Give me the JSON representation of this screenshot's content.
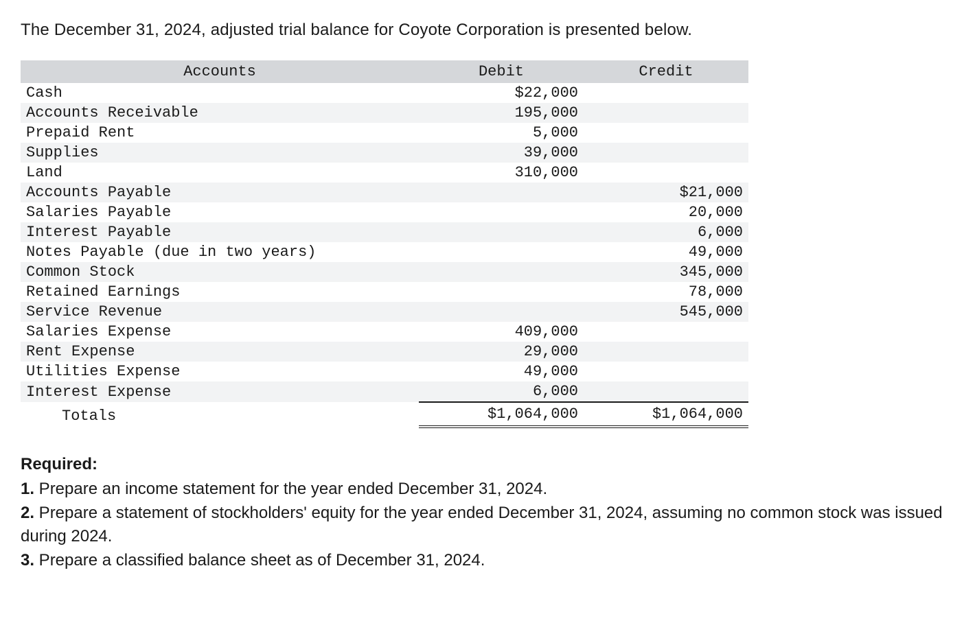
{
  "intro_text": "The December 31, 2024, adjusted trial balance for Coyote Corporation is presented below.",
  "table": {
    "headers": {
      "accounts": "Accounts",
      "debit": "Debit",
      "credit": "Credit"
    },
    "rows": [
      {
        "account": "Cash",
        "debit": "$22,000",
        "credit": "",
        "alt": false
      },
      {
        "account": "Accounts Receivable",
        "debit": "195,000",
        "credit": "",
        "alt": true
      },
      {
        "account": "Prepaid Rent",
        "debit": "5,000",
        "credit": "",
        "alt": false
      },
      {
        "account": "Supplies",
        "debit": "39,000",
        "credit": "",
        "alt": true
      },
      {
        "account": "Land",
        "debit": "310,000",
        "credit": "",
        "alt": false
      },
      {
        "account": "Accounts Payable",
        "debit": "",
        "credit": "$21,000",
        "alt": true
      },
      {
        "account": "Salaries Payable",
        "debit": "",
        "credit": "20,000",
        "alt": false
      },
      {
        "account": "Interest Payable",
        "debit": "",
        "credit": "6,000",
        "alt": true
      },
      {
        "account": "Notes Payable (due in two years)",
        "debit": "",
        "credit": "49,000",
        "alt": false
      },
      {
        "account": "Common Stock",
        "debit": "",
        "credit": "345,000",
        "alt": true
      },
      {
        "account": "Retained Earnings",
        "debit": "",
        "credit": "78,000",
        "alt": false
      },
      {
        "account": "Service Revenue",
        "debit": "",
        "credit": "545,000",
        "alt": true
      },
      {
        "account": "Salaries Expense",
        "debit": "409,000",
        "credit": "",
        "alt": false
      },
      {
        "account": "Rent Expense",
        "debit": "29,000",
        "credit": "",
        "alt": true
      },
      {
        "account": "Utilities Expense",
        "debit": "49,000",
        "credit": "",
        "alt": false
      },
      {
        "account": "Interest Expense",
        "debit": "6,000",
        "credit": "",
        "alt": true
      }
    ],
    "totals": {
      "label": "Totals",
      "debit": "$1,064,000",
      "credit": "$1,064,000"
    }
  },
  "required": {
    "label": "Required:",
    "items": [
      {
        "num": "1.",
        "text": "Prepare an income statement for the year ended December 31, 2024."
      },
      {
        "num": "2.",
        "text": "Prepare a statement of stockholders' equity for the year ended December 31, 2024, assuming no common stock was issued during 2024."
      },
      {
        "num": "3.",
        "text": "Prepare a classified balance sheet as of December 31, 2024."
      }
    ]
  },
  "style": {
    "header_bg": "#d5d7da",
    "alt_bg": "#f2f3f4",
    "text_color": "#1a1a1a",
    "body_font": "Arial",
    "table_font": "Courier New",
    "intro_fontsize": 24,
    "table_fontsize": 22,
    "required_fontsize": 24
  }
}
